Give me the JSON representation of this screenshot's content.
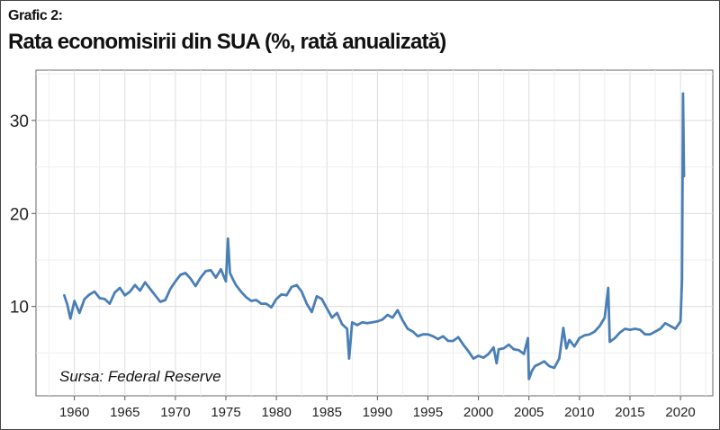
{
  "header": {
    "kicker": "Grafic 2:",
    "title": "Rata economisirii din SUA (%, rată anualizată)"
  },
  "chart_data": {
    "type": "line",
    "title": "Rata economisirii din SUA (%, rată anualizată)",
    "xlabel": "",
    "ylabel": "",
    "source": "Sursa: Federal Reserve",
    "xlim": [
      1956.2,
      2023.2
    ],
    "ylim": [
      0.4,
      35.4
    ],
    "x_ticks": [
      1960,
      1965,
      1970,
      1975,
      1980,
      1985,
      1990,
      1995,
      2000,
      2005,
      2010,
      2015,
      2020
    ],
    "y_ticks": [
      10,
      20,
      30
    ],
    "grid": true,
    "legend": "none",
    "color": "#4a7fb5",
    "series": [
      {
        "x": [
          1959.0,
          1959.3,
          1959.6,
          1960.0,
          1960.5,
          1961.0,
          1961.5,
          1962.0,
          1962.5,
          1963.0,
          1963.5,
          1964.0,
          1964.5,
          1965.0,
          1965.5,
          1966.0,
          1966.5,
          1967.0,
          1967.5,
          1968.0,
          1968.5,
          1969.0,
          1969.5,
          1970.0,
          1970.5,
          1971.0,
          1971.5,
          1972.0,
          1972.5,
          1973.0,
          1973.5,
          1974.0,
          1974.5,
          1975.0,
          1975.2,
          1975.4,
          1975.7,
          1976.0,
          1976.5,
          1977.0,
          1977.5,
          1978.0,
          1978.5,
          1979.0,
          1979.5,
          1980.0,
          1980.5,
          1981.0,
          1981.5,
          1982.0,
          1982.5,
          1983.0,
          1983.5,
          1984.0,
          1984.5,
          1985.0,
          1985.5,
          1986.0,
          1986.5,
          1987.0,
          1987.2,
          1987.5,
          1988.0,
          1988.5,
          1989.0,
          1989.5,
          1990.0,
          1990.5,
          1991.0,
          1991.5,
          1992.0,
          1992.5,
          1993.0,
          1993.5,
          1994.0,
          1994.5,
          1995.0,
          1995.5,
          1996.0,
          1996.5,
          1997.0,
          1997.5,
          1998.0,
          1998.5,
          1999.0,
          1999.5,
          2000.0,
          2000.5,
          2001.0,
          2001.5,
          2001.8,
          2002.0,
          2002.5,
          2003.0,
          2003.5,
          2004.0,
          2004.5,
          2004.9,
          2005.0,
          2005.3,
          2005.6,
          2006.0,
          2006.5,
          2007.0,
          2007.5,
          2008.0,
          2008.4,
          2008.7,
          2009.0,
          2009.5,
          2010.0,
          2010.5,
          2011.0,
          2011.5,
          2012.0,
          2012.5,
          2012.85,
          2013.0,
          2013.5,
          2014.0,
          2014.5,
          2015.0,
          2015.5,
          2016.0,
          2016.5,
          2017.0,
          2017.5,
          2018.0,
          2018.5,
          2019.0,
          2019.5,
          2020.0,
          2020.15,
          2020.25,
          2020.35
        ],
        "y": [
          11.2,
          10.2,
          8.7,
          10.6,
          9.3,
          10.8,
          11.3,
          11.6,
          10.9,
          10.8,
          10.3,
          11.5,
          12.0,
          11.2,
          11.6,
          12.3,
          11.7,
          12.6,
          11.9,
          11.2,
          10.5,
          10.7,
          11.9,
          12.7,
          13.4,
          13.6,
          13.0,
          12.2,
          13.1,
          13.8,
          13.9,
          13.1,
          14.0,
          12.7,
          17.3,
          13.6,
          12.9,
          12.3,
          11.6,
          11.0,
          10.6,
          10.7,
          10.3,
          10.3,
          9.9,
          10.8,
          11.3,
          11.2,
          12.1,
          12.3,
          11.6,
          10.3,
          9.4,
          11.1,
          10.8,
          9.8,
          8.8,
          9.3,
          8.1,
          7.6,
          4.4,
          8.3,
          8.0,
          8.3,
          8.2,
          8.3,
          8.4,
          8.6,
          9.1,
          8.8,
          9.6,
          8.5,
          7.6,
          7.3,
          6.8,
          7.0,
          7.0,
          6.8,
          6.5,
          6.8,
          6.3,
          6.3,
          6.7,
          5.9,
          5.2,
          4.4,
          4.7,
          4.5,
          4.9,
          5.6,
          3.9,
          5.4,
          5.5,
          5.9,
          5.4,
          5.3,
          4.9,
          6.6,
          2.2,
          3.1,
          3.6,
          3.8,
          4.1,
          3.6,
          3.4,
          4.4,
          7.7,
          5.5,
          6.4,
          5.7,
          6.6,
          6.9,
          7.0,
          7.3,
          7.9,
          8.8,
          12.0,
          6.2,
          6.6,
          7.2,
          7.6,
          7.5,
          7.6,
          7.5,
          7.0,
          7.0,
          7.3,
          7.6,
          8.2,
          7.9,
          7.6,
          8.4,
          12.9,
          32.9,
          24.0
        ]
      }
    ]
  }
}
